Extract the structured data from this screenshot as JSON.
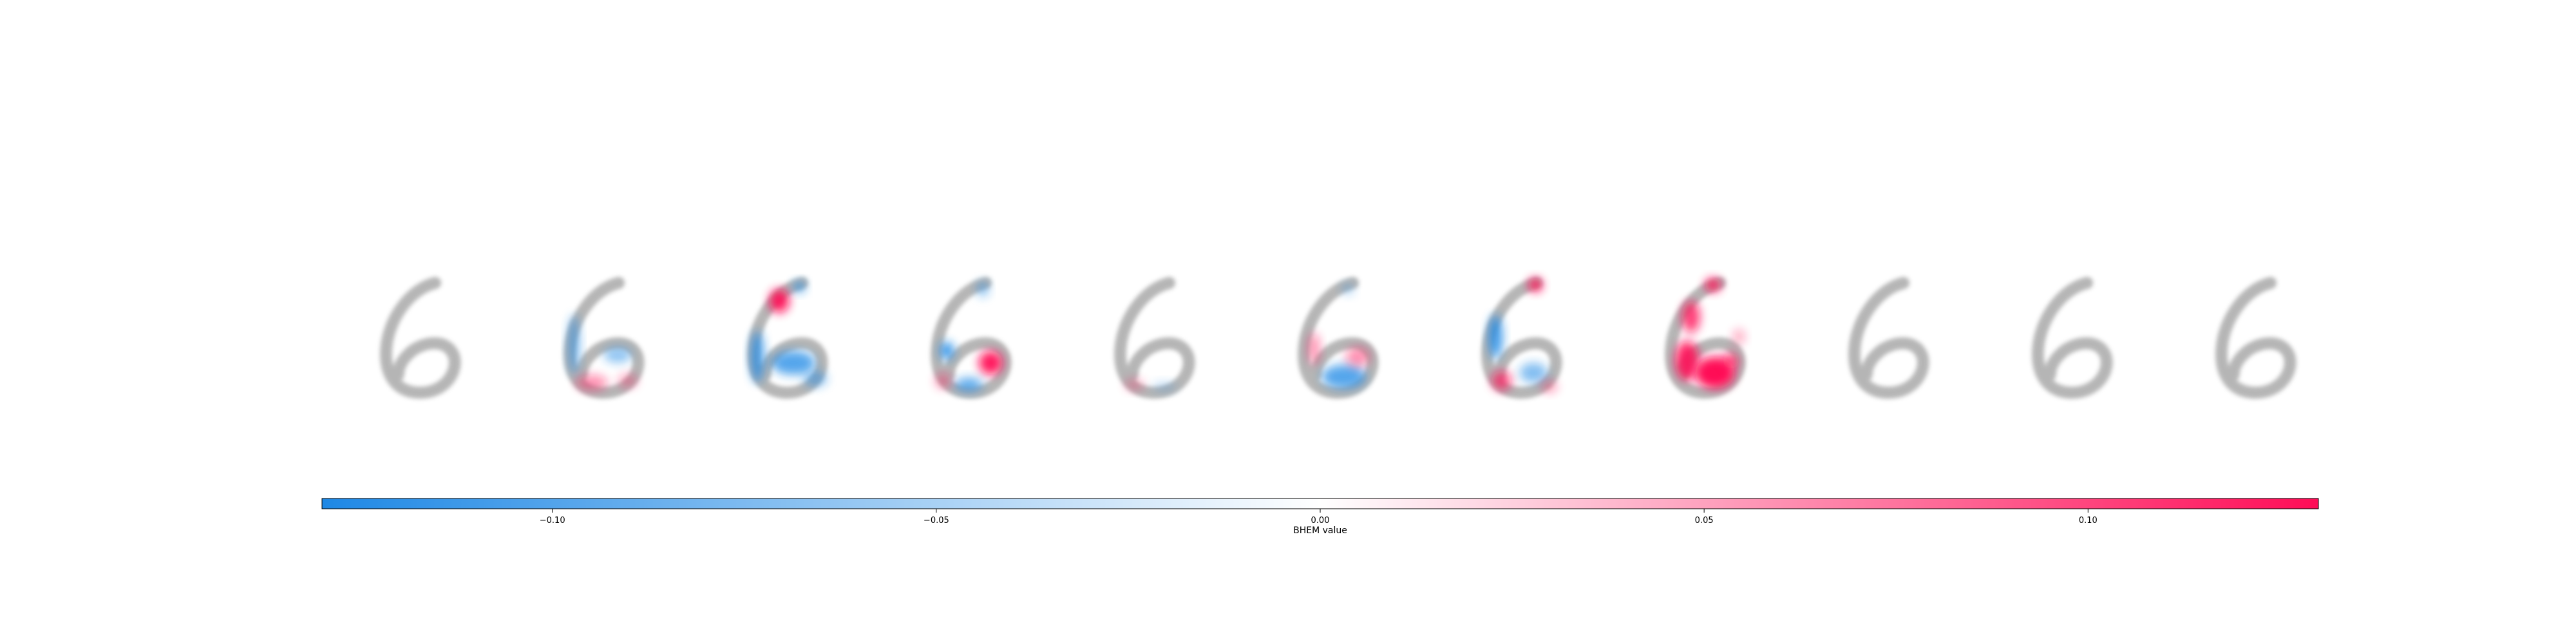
{
  "chart_data": {
    "type": "heatmap",
    "panels": [
      {
        "index": 1,
        "attribution": "none"
      },
      {
        "index": 2,
        "attribution": "mixed"
      },
      {
        "index": 3,
        "attribution": "mixed"
      },
      {
        "index": 4,
        "attribution": "mixed"
      },
      {
        "index": 5,
        "attribution": "none"
      },
      {
        "index": 6,
        "attribution": "mixed"
      },
      {
        "index": 7,
        "attribution": "mixed"
      },
      {
        "index": 8,
        "attribution": "strong-positive"
      },
      {
        "index": 9,
        "attribution": "none"
      },
      {
        "index": 10,
        "attribution": "none"
      },
      {
        "index": 11,
        "attribution": "none"
      }
    ],
    "colorbar": {
      "label": "BHEM value",
      "range": [
        -0.13,
        0.13
      ],
      "ticks": [
        -0.1,
        -0.05,
        0.0,
        0.05,
        0.1
      ],
      "tick_labels": [
        "−0.10",
        "−0.05",
        "0.00",
        "0.05",
        "0.10"
      ],
      "colors": {
        "negative": "#1e88e5",
        "neutral": "#ffffff",
        "positive": "#ff0d57",
        "digit": "#a9a9a9"
      }
    }
  }
}
